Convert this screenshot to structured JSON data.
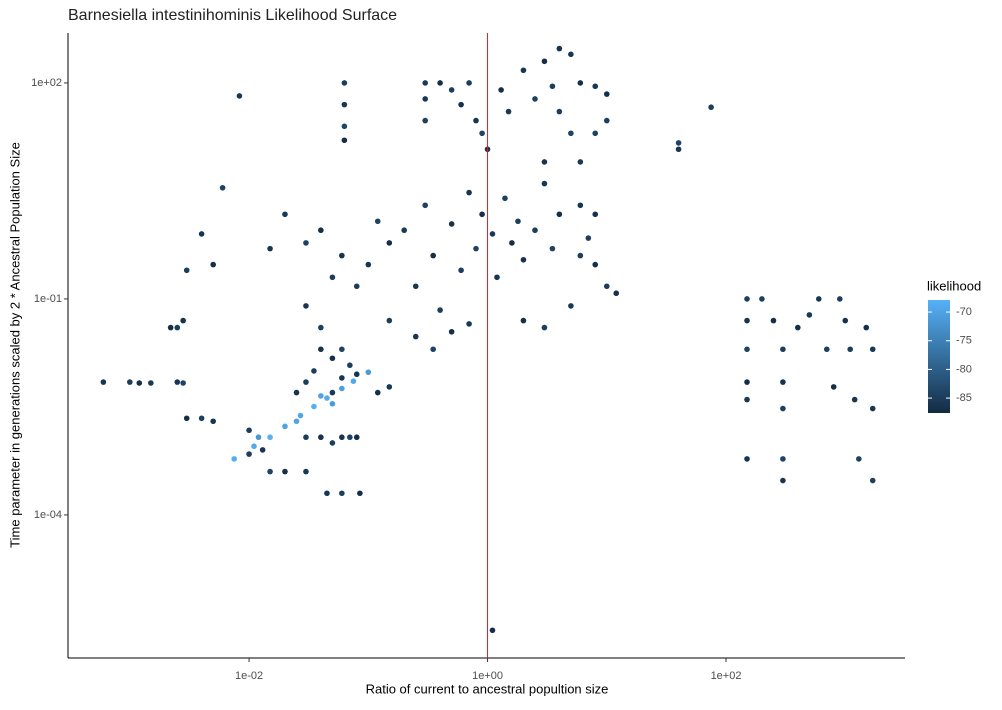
{
  "chart_data": {
    "type": "scatter",
    "title": "Barnesiella intestinihominis Likelihood Surface",
    "x_label": "Ratio of current to ancestral popultion size",
    "y_label": "Time parameter in generations scaled by 2 * Ancestral Population Size",
    "log_x": true,
    "log_y": true,
    "xlim": [
      0.000303,
      3170
    ],
    "ylim": [
      1.03e-06,
      494
    ],
    "xticks": [
      {
        "value": 0.01,
        "label": "1e-02"
      },
      {
        "value": 1,
        "label": "1e+00"
      },
      {
        "value": 100,
        "label": "1e+02"
      }
    ],
    "yticks": [
      {
        "value": 0.0001,
        "label": "1e-04"
      },
      {
        "value": 0.1,
        "label": "1e-01"
      },
      {
        "value": 100,
        "label": "1e+02"
      }
    ],
    "vline": {
      "value": 1,
      "color": "#e31a1c"
    },
    "color_scale": {
      "title": "likelihood",
      "low": "#132B43",
      "high": "#56B1F7",
      "limits": [
        -87.6,
        -67.9
      ],
      "ticks": [
        -70,
        -75,
        -80,
        -85
      ]
    },
    "series": [
      {
        "x": [
          0.0075,
          0.011,
          0.015,
          0.02,
          0.027,
          0.035,
          0.045,
          0.06,
          0.075,
          0.1,
          0.025,
          0.04,
          0.05,
          0.012
        ],
        "y": [
          0.0006,
          0.0009,
          0.0012,
          0.0017,
          0.0024,
          0.0032,
          0.0042,
          0.0057,
          0.0072,
          0.0096,
          0.002,
          0.0045,
          0.0035,
          0.0012
        ],
        "likelihood": [
          -68.5,
          -69,
          -68,
          -70,
          -69.5,
          -68.2,
          -69,
          -70.5,
          -69,
          -71,
          -70,
          -70.2,
          -71,
          -72
        ]
      },
      {
        "x": [
          0.01,
          0.013,
          0.015,
          0.02,
          0.03,
          0.045,
          0.06,
          0.085,
          0.03,
          0.04,
          0.05,
          0.06,
          0.07,
          0.08,
          0.05,
          0.06,
          0.07,
          0.05,
          0.03,
          0.025,
          0.035,
          0.08,
          0.06,
          0.12,
          0.15,
          0.005,
          0.004,
          0.003,
          0.01,
          0.04
        ],
        "y": [
          0.0007,
          0.0008,
          0.0004,
          0.0004,
          0.0004,
          0.0002,
          0.0002,
          0.0002,
          0.0012,
          0.0012,
          0.001,
          0.0012,
          0.0012,
          0.0012,
          0.005,
          0.008,
          0.012,
          0.015,
          0.007,
          0.005,
          0.01,
          0.009,
          0.02,
          0.005,
          0.006,
          0.002,
          0.0022,
          0.0022,
          0.0015,
          0.02
        ],
        "likelihood": [
          -85,
          -86,
          -84,
          -87,
          -85.5,
          -86,
          -84.5,
          -87,
          -85,
          -86.5,
          -85,
          -86,
          -84,
          -87,
          -85.5,
          -86,
          -84.5,
          -87,
          -85,
          -86.5,
          -85,
          -86,
          -84,
          -87,
          -85.5,
          -86,
          -84.5,
          -87,
          -85,
          -86.5
        ]
      },
      {
        "x": [
          0.0006,
          0.001,
          0.0012,
          0.0015,
          0.0025,
          0.0028,
          0.0025,
          0.0028,
          0.0022
        ],
        "y": [
          0.007,
          0.007,
          0.0068,
          0.0068,
          0.007,
          0.0068,
          0.04,
          0.05,
          0.04
        ],
        "likelihood": [
          -86,
          -85,
          -87,
          -85.5,
          -86,
          -84,
          -85,
          -86.5,
          -87
        ]
      },
      {
        "x": [
          0.003,
          0.004,
          0.006,
          0.005,
          0.02,
          0.015,
          0.03,
          0.04,
          0.05,
          0.06,
          0.08,
          0.1,
          0.12,
          0.15,
          0.2,
          0.25,
          0.3,
          0.35,
          0.4,
          0.5,
          0.6,
          0.7,
          0.8,
          0.9,
          1.1,
          1.2,
          1.4,
          1.6,
          1.8,
          2,
          2.5,
          3,
          3.5,
          4,
          5,
          6,
          7,
          8,
          10,
          12,
          0.15,
          0.25,
          0.35,
          0.5,
          0.7,
          0.03,
          0.04,
          2,
          3,
          8,
          6
        ],
        "y": [
          0.25,
          0.8,
          3.5,
          0.3,
          1.5,
          0.5,
          0.6,
          0.9,
          0.2,
          0.4,
          0.15,
          0.3,
          1.2,
          0.6,
          0.9,
          0.15,
          2,
          0.4,
          0.07,
          1.1,
          0.25,
          3,
          0.5,
          1.5,
          0.8,
          0.2,
          2.5,
          0.6,
          1.2,
          0.35,
          0.9,
          4,
          0.5,
          1.5,
          0.08,
          2,
          0.7,
          0.3,
          0.15,
          0.12,
          0.05,
          0.03,
          0.02,
          0.035,
          0.045,
          0.08,
          0.04,
          0.05,
          0.04,
          1.5,
          0.4
        ],
        "likelihood": [
          -85,
          -86,
          -84,
          -87,
          -85.5,
          -86,
          -84.5,
          -87,
          -85,
          -86.5,
          -85,
          -86,
          -84,
          -87,
          -85.5,
          -86,
          -84.5,
          -87,
          -85,
          -86.5,
          -85,
          -86,
          -84,
          -87,
          -85.5,
          -86,
          -84.5,
          -87,
          -85,
          -86.5,
          -85,
          -86,
          -84,
          -87,
          -85.5,
          -86,
          -84.5,
          -87,
          -85,
          -86.5,
          -85,
          -86,
          -84,
          -87,
          -85.5,
          -86,
          -84.5,
          -87,
          -85,
          -86.5,
          -85
        ]
      },
      {
        "x": [
          0.063,
          0.063,
          0.063,
          0.063,
          0.3,
          0.3,
          0.3,
          0.4,
          0.5,
          0.6,
          0.7,
          0.8,
          0.9,
          1.3,
          1.5,
          2,
          2.5,
          3,
          3.5,
          4,
          4,
          5,
          5,
          6,
          6,
          8,
          8,
          10,
          10,
          3,
          1
        ],
        "y": [
          100,
          50,
          25,
          16,
          100,
          60,
          30,
          100,
          80,
          50,
          100,
          30,
          20,
          80,
          40,
          150,
          60,
          200,
          90,
          300,
          40,
          250,
          20,
          100,
          8,
          90,
          20,
          70,
          30,
          8,
          12
        ],
        "likelihood": [
          -85,
          -86,
          -84,
          -87,
          -85.5,
          -86,
          -84.5,
          -87,
          -85,
          -86.5,
          -85,
          -86,
          -84,
          -87,
          -85.5,
          -86,
          -84.5,
          -87,
          -85,
          -86.5,
          -85,
          -86,
          -84,
          -87,
          -85.5,
          -86,
          -84.5,
          -87,
          -85,
          -86.5,
          -86
        ]
      },
      {
        "x": [
          150,
          150,
          150,
          150,
          150,
          150,
          200,
          250,
          300,
          300,
          300,
          300,
          300,
          400,
          500,
          600,
          700,
          800,
          900,
          1000,
          1100,
          1200,
          1300,
          1500,
          1700,
          1700,
          1700
        ],
        "y": [
          0.1,
          0.05,
          0.02,
          0.007,
          0.004,
          0.0006,
          0.1,
          0.05,
          0.02,
          0.007,
          0.003,
          0.0003,
          0.0006,
          0.04,
          0.06,
          0.1,
          0.02,
          0.006,
          0.1,
          0.05,
          0.02,
          0.004,
          0.0006,
          0.04,
          0.02,
          0.003,
          0.0003
        ],
        "likelihood": [
          -85,
          -86,
          -84,
          -87,
          -85.5,
          -86,
          -84.5,
          -87,
          -85,
          -86.5,
          -85,
          -86,
          -84,
          -87,
          -85.5,
          -86,
          -84.5,
          -87,
          -85,
          -86.5,
          -85,
          -86,
          -84,
          -87,
          -85.5,
          -86,
          -84.5
        ]
      },
      {
        "x": [
          0.0083,
          75,
          40,
          40,
          1.1
        ],
        "y": [
          66,
          46,
          14.7,
          12,
          2.5e-06
        ],
        "likelihood": [
          -86,
          -85,
          -84,
          -86,
          -87
        ]
      }
    ]
  }
}
